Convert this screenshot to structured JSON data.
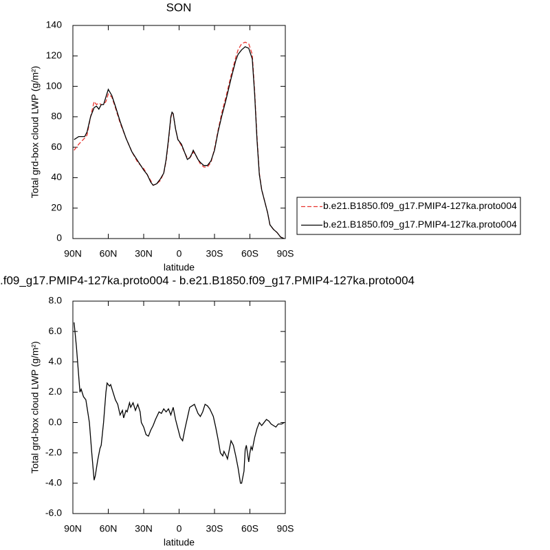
{
  "chart_data": [
    {
      "type": "line",
      "title": "SON",
      "x_label": "latitude",
      "y_label": "Total grd-box cloud LWP (g/m²)",
      "x": [
        89,
        85,
        80,
        78,
        75,
        72,
        70,
        68,
        66,
        64,
        62,
        60,
        57,
        54,
        50,
        45,
        40,
        35,
        30,
        27,
        24,
        22,
        19,
        16,
        13,
        11,
        9,
        7,
        6,
        5,
        3,
        1,
        -2,
        -5,
        -7,
        -9,
        -11,
        -12,
        -14,
        -16,
        -18,
        -21,
        -24,
        -27,
        -30,
        -33,
        -36,
        -40,
        -44,
        -48,
        -50,
        -53,
        -56,
        -59,
        -62,
        -64,
        -66,
        -68,
        -70,
        -72,
        -75,
        -77,
        -80,
        -83,
        -86,
        -89
      ],
      "series": [
        {
          "name": "b.e21.B1850.f09_g17.PMIP4-127ka.proto004",
          "color": "#e8312c",
          "dashed": true,
          "values": [
            58,
            62,
            66,
            68,
            80,
            90,
            88,
            89,
            88,
            88,
            90,
            95,
            93,
            86,
            76,
            66,
            57,
            50,
            46,
            42,
            38,
            35,
            36,
            38,
            43,
            51,
            64,
            79,
            83,
            82,
            72,
            65,
            61,
            56,
            53,
            53,
            55,
            57,
            55,
            52,
            49,
            47,
            47,
            50,
            59,
            71,
            82,
            94,
            107,
            119,
            124,
            128,
            129,
            128,
            121,
            97,
            67,
            43,
            32,
            26,
            17,
            9,
            6,
            4,
            1,
            0
          ]
        },
        {
          "name": "b.e21.B1850.f09_g17.PMIP4-127ka.proto004",
          "color": "#000000",
          "dashed": false,
          "values": [
            65,
            67,
            67,
            70,
            80,
            86,
            87,
            85,
            88,
            88,
            93,
            98,
            94,
            87,
            77,
            66,
            57,
            51,
            45,
            42,
            37,
            35,
            36,
            39,
            43,
            52,
            65,
            80,
            83,
            82,
            72,
            65,
            62,
            56,
            52,
            53,
            56,
            58,
            55,
            52,
            50,
            48,
            48,
            51,
            58,
            70,
            80,
            92,
            105,
            117,
            121,
            124,
            126,
            125,
            118,
            95,
            65,
            42,
            32,
            26,
            17,
            9,
            6,
            4,
            1,
            0
          ]
        }
      ],
      "xlim": [
        90,
        -90
      ],
      "xticks": [
        {
          "value": 90,
          "label": "90N"
        },
        {
          "value": 60,
          "label": "60N"
        },
        {
          "value": 30,
          "label": "30N"
        },
        0,
        {
          "value": -30,
          "label": "30S"
        },
        {
          "value": -60,
          "label": "60S"
        },
        {
          "value": -90,
          "label": "90S"
        }
      ],
      "ylim": [
        0,
        140
      ],
      "yticks": [
        0,
        20,
        40,
        60,
        80,
        100,
        120,
        140
      ],
      "legend": "right"
    },
    {
      "type": "line",
      "title": ".f09_g17.PMIP4-127ka.proto004 - b.e21.B1850.f09_g17.PMIP4-127ka.proto004",
      "x_label": "latitude",
      "y_label": "Total grd-box cloud LWP (g/m²)",
      "x": [
        89,
        87,
        85,
        84,
        83,
        81,
        79,
        78,
        76,
        74,
        72,
        71,
        69,
        67,
        66,
        64,
        62,
        61,
        59,
        58,
        56,
        54,
        52,
        50,
        48,
        47,
        45,
        44,
        42,
        41,
        39,
        37,
        35,
        33,
        32,
        30,
        28,
        26,
        24,
        22,
        20,
        17,
        15,
        13,
        11,
        9,
        7,
        5,
        3,
        1,
        -1,
        -3,
        -5,
        -7,
        -9,
        -11,
        -13,
        -16,
        -18,
        -20,
        -22,
        -24,
        -26,
        -29,
        -31,
        -33,
        -35,
        -37,
        -38,
        -40,
        -41,
        -43,
        -44,
        -46,
        -48,
        -50,
        -52,
        -53,
        -55,
        -56,
        -57,
        -59,
        -60,
        -61,
        -62,
        -64,
        -66,
        -68,
        -70,
        -72,
        -74,
        -76,
        -78,
        -80,
        -82,
        -84,
        -87,
        -89
      ],
      "values": [
        6.6,
        5,
        3,
        2,
        2.2,
        1.7,
        1.5,
        1.0,
        0,
        -2,
        -3.8,
        -3.5,
        -2.5,
        -1.7,
        -1.5,
        0,
        2.0,
        2.6,
        2.4,
        2.5,
        2.0,
        1.5,
        1.2,
        0.5,
        0.8,
        0.3,
        0.8,
        0.7,
        1.3,
        1.0,
        1.3,
        0.8,
        1.2,
        0.7,
        0.0,
        -0.3,
        -0.8,
        -0.9,
        -0.5,
        -0.2,
        0.2,
        0.7,
        0.6,
        0.9,
        0.7,
        0.9,
        0.5,
        1.0,
        0.2,
        -0.4,
        -1.0,
        -1.2,
        -0.4,
        0.3,
        1.0,
        1.1,
        1.2,
        0.6,
        0.4,
        0.7,
        1.2,
        1.1,
        0.9,
        0.4,
        -0.3,
        -1.1,
        -2.0,
        -2.2,
        -1.9,
        -2.2,
        -2.4,
        -1.6,
        -1.2,
        -1.5,
        -2.2,
        -3.0,
        -4.0,
        -4.0,
        -3.2,
        -1.8,
        -1.5,
        -2.6,
        -2.0,
        -1.6,
        -1.8,
        -1.0,
        -0.4,
        0.0,
        -0.2,
        0.0,
        0.2,
        0.1,
        -0.1,
        -0.2,
        -0.3,
        -0.1,
        -0.1,
        0.0
      ],
      "color": "#000000",
      "xlim": [
        90,
        -90
      ],
      "xticks": [
        {
          "value": 90,
          "label": "90N"
        },
        {
          "value": 60,
          "label": "60N"
        },
        {
          "value": 30,
          "label": "30N"
        },
        0,
        {
          "value": -30,
          "label": "30S"
        },
        {
          "value": -60,
          "label": "60S"
        },
        {
          "value": -90,
          "label": "90S"
        }
      ],
      "ylim": [
        -6,
        8
      ],
      "yticks": [
        {
          "value": -6,
          "label": "-6.0"
        },
        {
          "value": -4,
          "label": "-4.0"
        },
        {
          "value": -2,
          "label": "-2.0"
        },
        {
          "value": 0,
          "label": "0.0"
        },
        {
          "value": 2,
          "label": "2.0"
        },
        {
          "value": 4,
          "label": "4.0"
        },
        {
          "value": 6,
          "label": "6.0"
        },
        {
          "value": 8,
          "label": "8.0"
        }
      ]
    }
  ]
}
